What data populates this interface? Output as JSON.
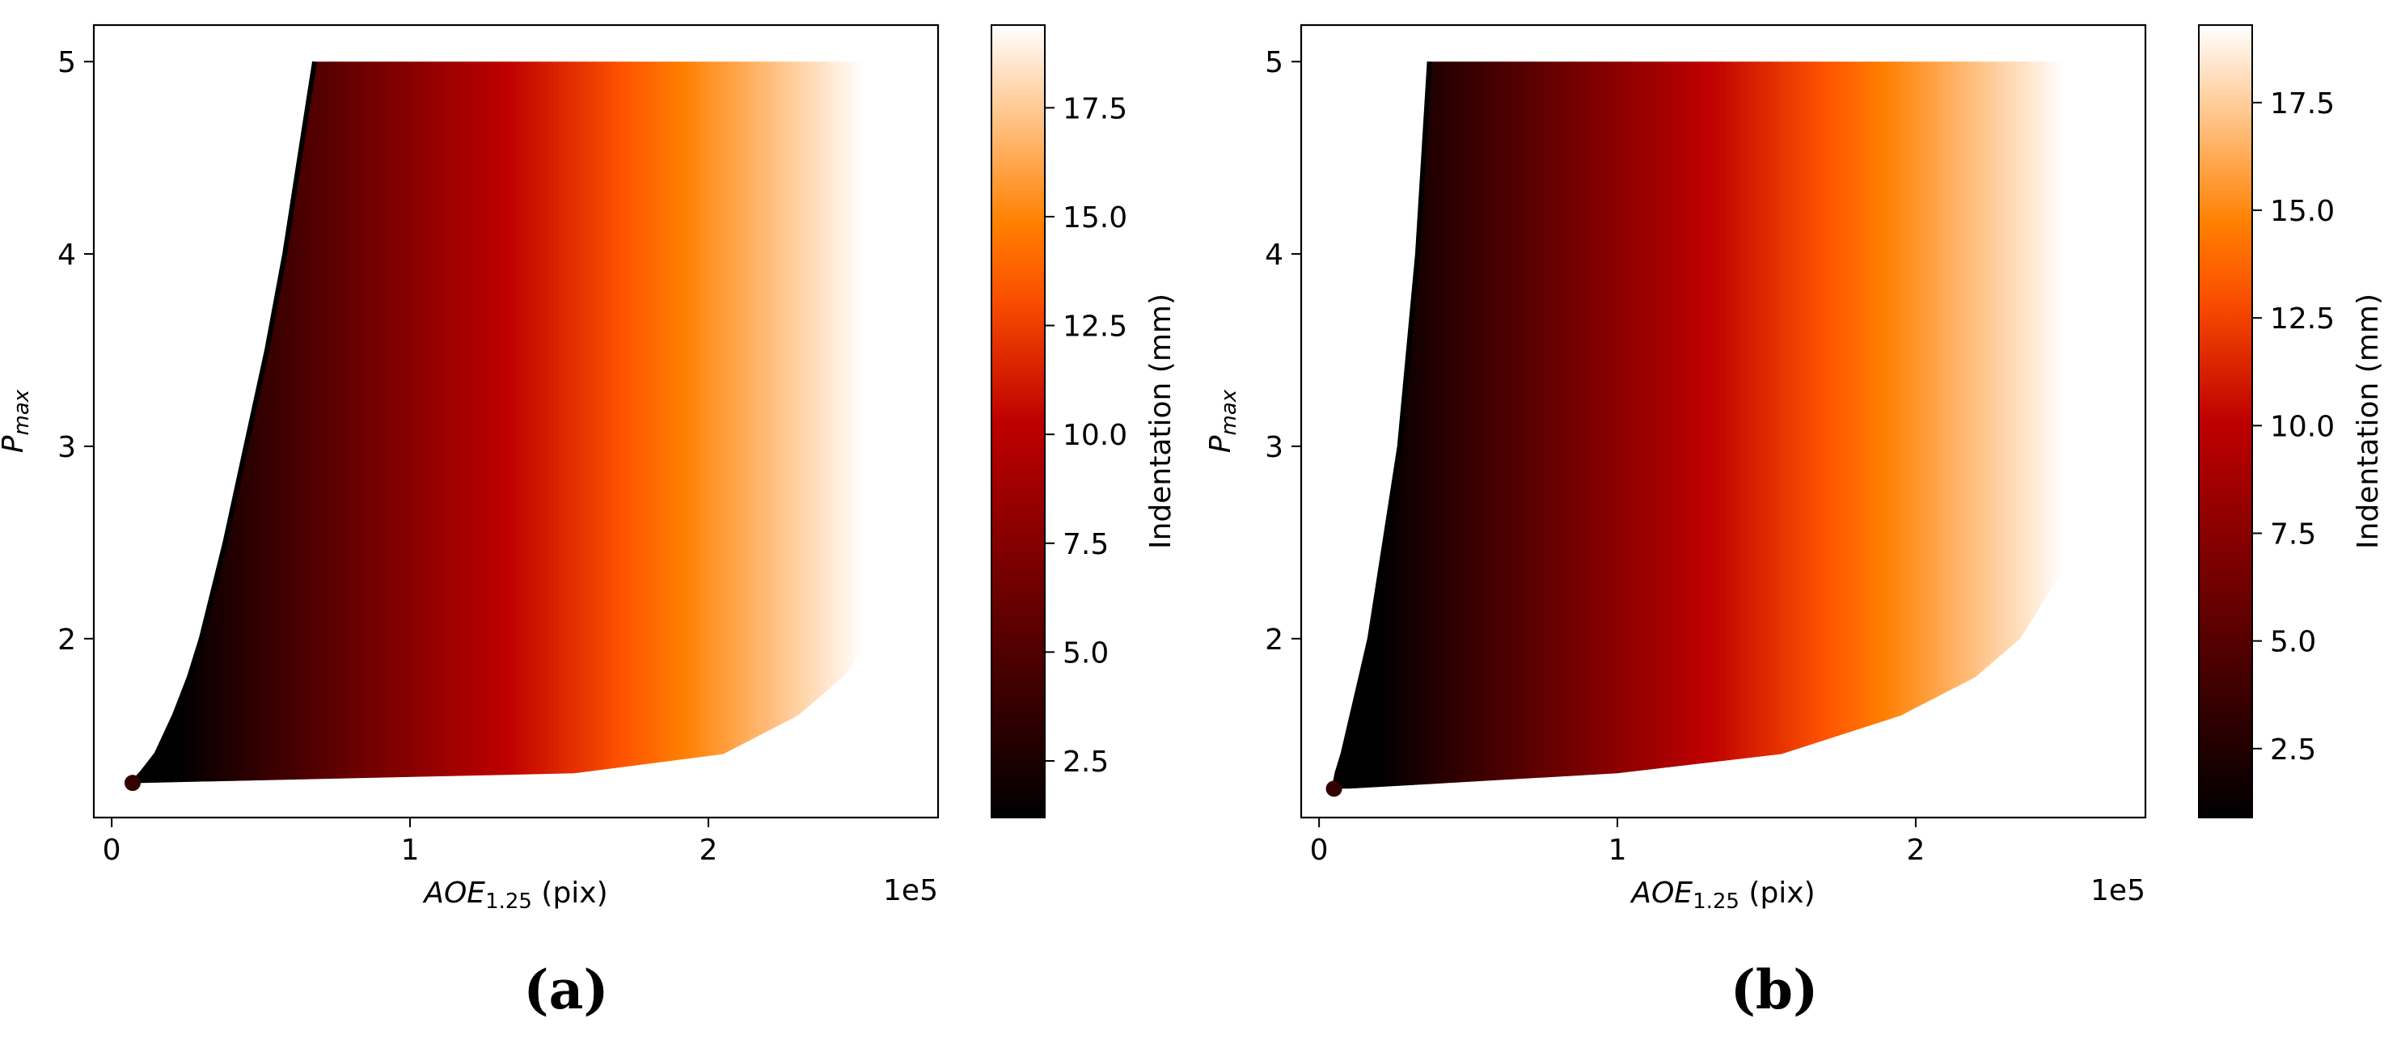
{
  "chart_data": [
    {
      "type": "heatmap",
      "panel_label": "(a)",
      "title": "",
      "xlabel_main": "AOE",
      "xlabel_sub": "1.25",
      "xlabel_unit": " (pix)",
      "x_offset_text": "1e5",
      "ylabel_main": "P",
      "ylabel_sub": "max",
      "xlim": [
        -0.06,
        2.77
      ],
      "ylim": [
        1.07,
        5.19
      ],
      "x_ticks": [
        0,
        1,
        2
      ],
      "x_tick_labels": [
        "0",
        "1",
        "2"
      ],
      "y_ticks": [
        2,
        3,
        4,
        5
      ],
      "y_tick_labels": [
        "2",
        "3",
        "4",
        "5"
      ],
      "colorbar": {
        "label": "Indentation (mm)",
        "range": [
          1.2,
          19.4
        ],
        "ticks": [
          2.5,
          5.0,
          7.5,
          10.0,
          12.5,
          15.0,
          17.5
        ],
        "tick_labels": [
          "2.5",
          "5.0",
          "7.5",
          "10.0",
          "12.5",
          "15.0",
          "17.5"
        ],
        "colormap": "gist_heat"
      },
      "region": {
        "y_values": [
          1.25,
          1.3,
          1.4,
          1.6,
          1.8,
          2.0,
          2.5,
          3.0,
          3.5,
          4.0,
          4.5,
          5.0
        ],
        "x_left": [
          0.07,
          0.1,
          0.15,
          0.21,
          0.26,
          0.3,
          0.38,
          0.45,
          0.52,
          0.58,
          0.63,
          0.68
        ],
        "x_right": [
          0.1,
          1.55,
          2.05,
          2.3,
          2.45,
          2.55,
          2.64,
          2.67,
          2.68,
          2.69,
          2.69,
          2.69
        ]
      }
    },
    {
      "type": "heatmap",
      "panel_label": "(b)",
      "title": "",
      "xlabel_main": "AOE",
      "xlabel_sub": "1.25",
      "xlabel_unit": " (pix)",
      "x_offset_text": "1e5",
      "ylabel_main": "P",
      "ylabel_sub": "max",
      "xlim": [
        -0.06,
        2.77
      ],
      "ylim": [
        1.07,
        5.19
      ],
      "x_ticks": [
        0,
        1,
        2
      ],
      "x_tick_labels": [
        "0",
        "1",
        "2"
      ],
      "y_ticks": [
        2,
        3,
        4,
        5
      ],
      "y_tick_labels": [
        "2",
        "3",
        "4",
        "5"
      ],
      "colorbar": {
        "label": "Indentation (mm)",
        "range": [
          0.9,
          19.3
        ],
        "ticks": [
          2.5,
          5.0,
          7.5,
          10.0,
          12.5,
          15.0,
          17.5
        ],
        "tick_labels": [
          "2.5",
          "5.0",
          "7.5",
          "10.0",
          "12.5",
          "15.0",
          "17.5"
        ],
        "colormap": "gist_heat"
      },
      "region": {
        "y_values": [
          1.22,
          1.3,
          1.4,
          1.6,
          1.8,
          2.0,
          2.5,
          3.0,
          3.5,
          4.0,
          4.5,
          5.0
        ],
        "x_left": [
          0.05,
          0.06,
          0.08,
          0.11,
          0.14,
          0.17,
          0.22,
          0.27,
          0.3,
          0.33,
          0.35,
          0.37
        ],
        "x_right": [
          0.1,
          1.0,
          1.55,
          1.95,
          2.2,
          2.35,
          2.55,
          2.64,
          2.66,
          2.67,
          2.67,
          2.67
        ]
      }
    }
  ]
}
